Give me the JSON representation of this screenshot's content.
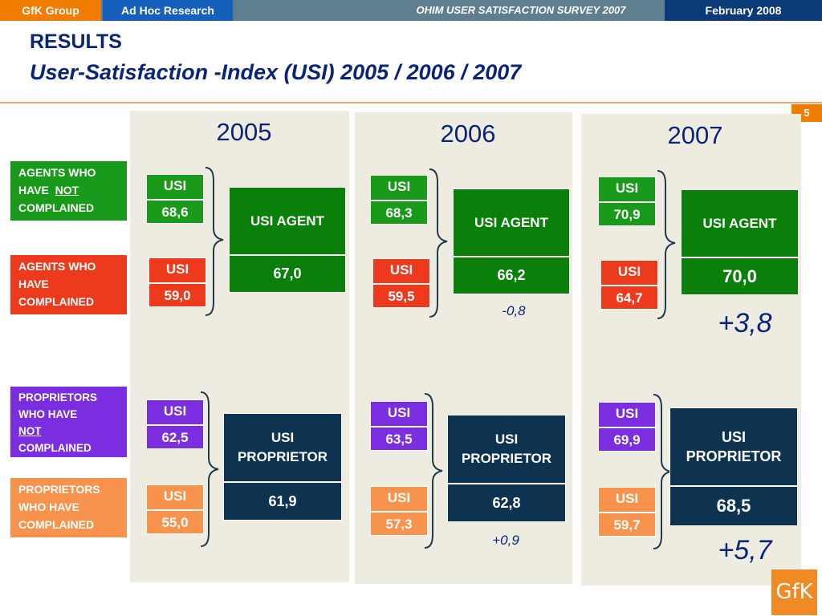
{
  "header": {
    "brand": "GfK Group",
    "section": "Ad Hoc Research",
    "survey": "OHIM USER SATISFACTION SURVEY 2007",
    "date": "February  2008"
  },
  "title": "RESULTS",
  "subtitle": "User-Satisfaction -Index (USI) 2005 / 2006 / 2007",
  "page_number": "5",
  "colors": {
    "agents_not_complained": "#1a9a1a",
    "agents_complained": "#ee3a1c",
    "agent_result": "#0a7f0a",
    "proprietors_not_complained": "#7a2ee0",
    "proprietors_complained": "#f7934c",
    "proprietor_result": "#0d3350",
    "panel": "#eeece1",
    "brand_orange": "#f07c00"
  },
  "legend": {
    "agents_not": {
      "line1": "AGENTS WHO",
      "line2_prefix": "HAVE  ",
      "not": "NOT",
      "line3": "COMPLAINED"
    },
    "agents": {
      "line1": "AGENTS WHO",
      "line2": "HAVE",
      "line3": "COMPLAINED"
    },
    "proprietors_not": {
      "line1": "PROPRIETORS",
      "line2": "WHO HAVE",
      "not": "NOT",
      "line4": "COMPLAINED"
    },
    "proprietors": {
      "line1": "PROPRIETORS",
      "line2": "WHO HAVE",
      "line3": "COMPLAINED"
    }
  },
  "usi_label": "USI",
  "agent_title": "USI AGENT",
  "proprietor_title_1": "USI",
  "proprietor_title_2": "PROPRIETOR",
  "years": [
    {
      "year": "2005",
      "agents_not_complained": "68,6",
      "agents_complained": "59,0",
      "usi_agent": "67,0",
      "agent_change": "",
      "proprietors_not_complained": "62,5",
      "proprietors_complained": "55,0",
      "usi_proprietor": "61,9",
      "proprietor_change": ""
    },
    {
      "year": "2006",
      "agents_not_complained": "68,3",
      "agents_complained": "59,5",
      "usi_agent": "66,2",
      "agent_change": "-0,8",
      "proprietors_not_complained": "63,5",
      "proprietors_complained": "57,3",
      "usi_proprietor": "62,8",
      "proprietor_change": "+0,9"
    },
    {
      "year": "2007",
      "agents_not_complained": "70,9",
      "agents_complained": "64,7",
      "usi_agent": "70,0",
      "agent_change": "+3,8",
      "proprietors_not_complained": "69,9",
      "proprietors_complained": "59,7",
      "usi_proprietor": "68,5",
      "proprietor_change": "+5,7"
    }
  ],
  "logo_text": "GfK"
}
